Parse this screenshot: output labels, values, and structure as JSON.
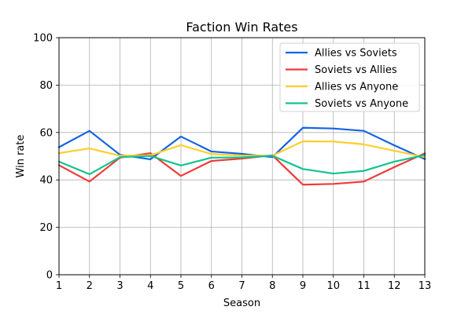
{
  "chart_data": {
    "type": "line",
    "title": "Faction Win Rates",
    "xlabel": "Season",
    "ylabel": "Win rate",
    "x": [
      1,
      2,
      3,
      4,
      5,
      6,
      7,
      8,
      9,
      10,
      11,
      12,
      13
    ],
    "xlim": [
      1,
      13
    ],
    "ylim": [
      0,
      100
    ],
    "yticks": [
      0,
      20,
      40,
      60,
      80,
      100
    ],
    "grid": true,
    "legend_position": "top-right",
    "series": [
      {
        "name": "Allies vs Soviets",
        "color": "#1463e6",
        "values": [
          53.8,
          60.7,
          50.6,
          48.7,
          58.3,
          52.0,
          51.0,
          49.6,
          62.0,
          61.7,
          60.7,
          54.6,
          48.8
        ]
      },
      {
        "name": "Soviets vs Allies",
        "color": "#f03a3a",
        "values": [
          46.2,
          39.3,
          49.4,
          51.3,
          41.7,
          48.0,
          49.0,
          50.4,
          38.0,
          38.3,
          39.3,
          45.4,
          51.2
        ]
      },
      {
        "name": "Allies vs Anyone",
        "color": "#fcd02c",
        "values": [
          51.3,
          53.3,
          50.2,
          50.4,
          54.7,
          50.9,
          50.3,
          50.2,
          56.3,
          56.2,
          55.0,
          52.3,
          49.6
        ]
      },
      {
        "name": "Soviets vs Anyone",
        "color": "#13c48c",
        "values": [
          47.7,
          42.4,
          49.6,
          50.1,
          46.1,
          49.4,
          49.5,
          50.2,
          44.6,
          42.7,
          43.8,
          47.7,
          50.5
        ]
      }
    ]
  }
}
